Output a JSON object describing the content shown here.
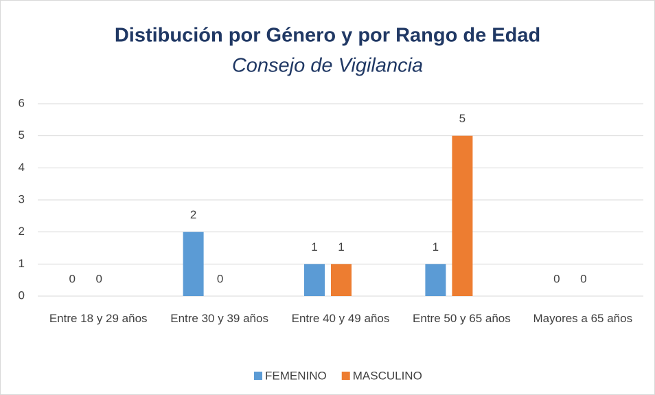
{
  "chart_data": {
    "type": "bar",
    "title": "Distibución por Género y por Rango de Edad",
    "subtitle": "Consejo de Vigilancia",
    "categories": [
      "Entre 18 y 29 años",
      "Entre 30 y 39 años",
      "Entre 40 y 49 años",
      "Entre 50 y 65 años",
      "Mayores a 65 años"
    ],
    "series": [
      {
        "name": "FEMENINO",
        "color": "#5b9bd5",
        "values": [
          0,
          2,
          1,
          1,
          0
        ]
      },
      {
        "name": "MASCULINO",
        "color": "#ed7d31",
        "values": [
          0,
          0,
          1,
          5,
          0
        ]
      }
    ],
    "ylim": [
      0,
      6
    ],
    "yticks": [
      0,
      1,
      2,
      3,
      4,
      5,
      6
    ],
    "grid": true,
    "legend": "bottom"
  }
}
